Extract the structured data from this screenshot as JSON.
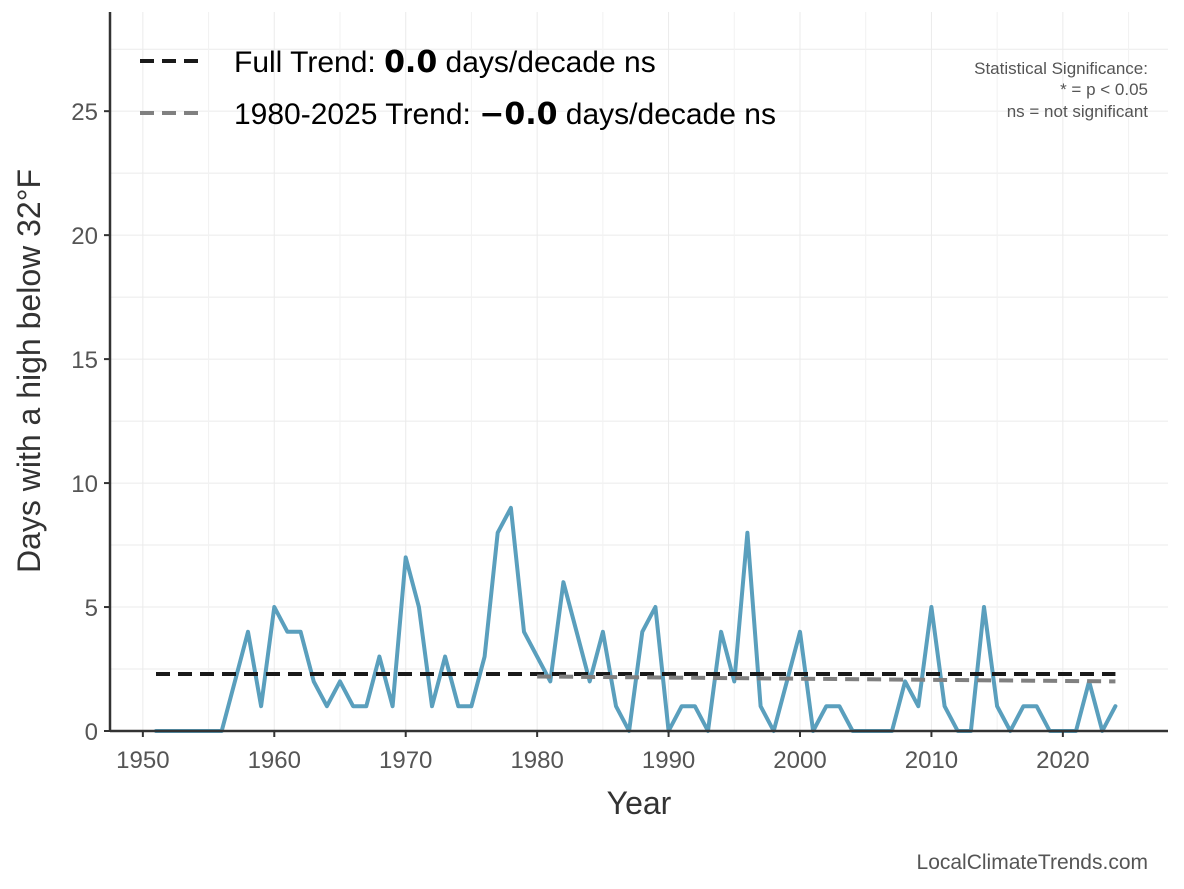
{
  "chart_data": {
    "type": "line",
    "xlabel": "Year",
    "ylabel": "Days with a high below 32°F",
    "xlim": [
      1947.5,
      1928.0
    ],
    "ylim": [
      0,
      29
    ],
    "xticks": [
      1950,
      1960,
      1970,
      1980,
      1990,
      2000,
      2010,
      2020
    ],
    "yticks": [
      0,
      5,
      10,
      15,
      20,
      25
    ],
    "grid": true,
    "legend_position": "top-left",
    "series": [
      {
        "color": "#5a9fbd",
        "x": [
          1951,
          1952,
          1953,
          1954,
          1955,
          1956,
          1957,
          1958,
          1959,
          1960,
          1961,
          1962,
          1963,
          1964,
          1965,
          1966,
          1967,
          1968,
          1969,
          1970,
          1971,
          1972,
          1973,
          1974,
          1975,
          1976,
          1977,
          1978,
          1979,
          1980,
          1981,
          1982,
          1983,
          1984,
          1985,
          1986,
          1987,
          1988,
          1989,
          1990,
          1991,
          1992,
          1993,
          1994,
          1995,
          1996,
          1997,
          1998,
          1999,
          2000,
          2001,
          2002,
          2003,
          2004,
          2005,
          2006,
          2007,
          2008,
          2009,
          2010,
          2011,
          2012,
          2013,
          2014,
          2015,
          2016,
          2017,
          2018,
          2019,
          2020,
          2021,
          2022,
          2023,
          2024
        ],
        "values": [
          0,
          0,
          0,
          0,
          0,
          0,
          2,
          4,
          1,
          5,
          4,
          4,
          2,
          1,
          2,
          1,
          1,
          3,
          1,
          7,
          5,
          1,
          3,
          1,
          1,
          3,
          8,
          9,
          4,
          3,
          2,
          6,
          4,
          2,
          4,
          1,
          0,
          4,
          5,
          0,
          1,
          1,
          0,
          4,
          2,
          8,
          1,
          0,
          2,
          4,
          0,
          1,
          1,
          0,
          0,
          0,
          0,
          2,
          1,
          5,
          1,
          0,
          0,
          5,
          1,
          0,
          1,
          1,
          0,
          0,
          0,
          2,
          0,
          1
        ]
      }
    ],
    "trend_lines": [
      {
        "name": "Full Trend",
        "color": "#1a1a1a",
        "x": [
          1951,
          2024
        ],
        "y": [
          2.3,
          2.3
        ]
      },
      {
        "name": "1980-2025 Trend",
        "color": "#808080",
        "x": [
          1980,
          2024
        ],
        "y": [
          2.2,
          2.0
        ]
      }
    ]
  },
  "legend": {
    "full": {
      "prefix": "Full Trend: ",
      "value": "0.0",
      "suffix": " days/decade ns"
    },
    "recent": {
      "prefix": "1980-2025 Trend: ",
      "value": "−0.0",
      "suffix": " days/decade ns"
    }
  },
  "significance": [
    "Statistical Significance:",
    "* = p < 0.05",
    "ns = not significant"
  ],
  "credit": "LocalClimateTrends.com"
}
